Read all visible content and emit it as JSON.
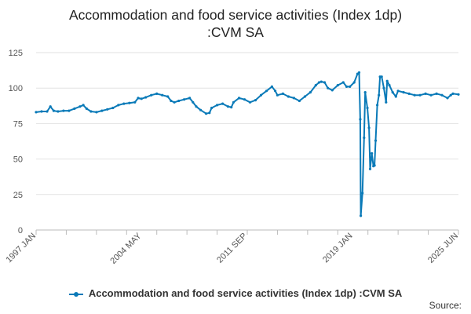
{
  "chart_data": {
    "type": "line",
    "title": "Accommodation and food service activities (Index 1dp) :CVM SA",
    "title_lines": [
      "Accommodation and food service activities (Index 1dp)",
      ":CVM SA"
    ],
    "series": [
      {
        "name": "Accommodation and food service activities (Index 1dp) :CVM SA",
        "color": "#0a7ab8",
        "points": [
          [
            1997.0,
            83
          ],
          [
            1997.5,
            83.5
          ],
          [
            1998.0,
            83.5
          ],
          [
            1998.3,
            87
          ],
          [
            1998.6,
            84
          ],
          [
            1999.0,
            83.5
          ],
          [
            1999.5,
            84
          ],
          [
            2000.0,
            84
          ],
          [
            2000.5,
            85.5
          ],
          [
            2001.0,
            87
          ],
          [
            2001.3,
            88
          ],
          [
            2001.6,
            85.5
          ],
          [
            2002.0,
            83.5
          ],
          [
            2002.5,
            83
          ],
          [
            2003.0,
            84
          ],
          [
            2003.5,
            85
          ],
          [
            2004.0,
            86
          ],
          [
            2004.5,
            88
          ],
          [
            2005.0,
            89
          ],
          [
            2005.5,
            89.5
          ],
          [
            2006.0,
            90
          ],
          [
            2006.3,
            93
          ],
          [
            2006.6,
            92.5
          ],
          [
            2007.0,
            93.5
          ],
          [
            2007.5,
            95
          ],
          [
            2008.0,
            96
          ],
          [
            2008.5,
            95
          ],
          [
            2009.0,
            94
          ],
          [
            2009.3,
            91
          ],
          [
            2009.6,
            90
          ],
          [
            2010.0,
            91
          ],
          [
            2010.5,
            92
          ],
          [
            2011.0,
            93
          ],
          [
            2011.3,
            90
          ],
          [
            2011.6,
            87
          ],
          [
            2012.0,
            84.5
          ],
          [
            2012.5,
            82
          ],
          [
            2012.8,
            82.5
          ],
          [
            2013.0,
            86
          ],
          [
            2013.5,
            88
          ],
          [
            2014.0,
            89
          ],
          [
            2014.5,
            87
          ],
          [
            2014.8,
            86.5
          ],
          [
            2015.0,
            90
          ],
          [
            2015.5,
            93
          ],
          [
            2016.0,
            92
          ],
          [
            2016.5,
            90
          ],
          [
            2017.0,
            91.5
          ],
          [
            2017.5,
            95
          ],
          [
            2018.0,
            98
          ],
          [
            2018.5,
            101
          ],
          [
            2018.8,
            98
          ],
          [
            2019.0,
            95
          ],
          [
            2019.5,
            96
          ],
          [
            2020.0,
            94
          ],
          [
            2020.5,
            93
          ],
          [
            2021.0,
            91
          ],
          [
            2021.5,
            94
          ],
          [
            2022.0,
            97
          ],
          [
            2022.5,
            102
          ],
          [
            2022.8,
            104
          ],
          [
            2023.0,
            104.5
          ],
          [
            2023.3,
            104
          ],
          [
            2023.6,
            100
          ],
          [
            2024.0,
            98.5
          ],
          [
            2024.5,
            102
          ],
          [
            2025.0,
            104
          ],
          [
            2025.3,
            101
          ],
          [
            2025.6,
            101
          ],
          [
            2026.0,
            104
          ],
          [
            2026.3,
            110
          ],
          [
            2026.45,
            111
          ],
          [
            2026.55,
            78
          ],
          [
            2026.6,
            10
          ],
          [
            2026.75,
            26
          ],
          [
            2026.9,
            65
          ],
          [
            2027.0,
            97
          ],
          [
            2027.2,
            86
          ],
          [
            2027.35,
            72
          ],
          [
            2027.45,
            43
          ],
          [
            2027.6,
            54
          ],
          [
            2027.75,
            45
          ],
          [
            2027.85,
            45.5
          ],
          [
            2027.95,
            63
          ],
          [
            2028.1,
            88
          ],
          [
            2028.25,
            95
          ],
          [
            2028.35,
            108
          ],
          [
            2028.5,
            108
          ],
          [
            2028.7,
            100
          ],
          [
            2028.9,
            90
          ],
          [
            2029.0,
            105
          ],
          [
            2029.2,
            102
          ],
          [
            2029.5,
            97
          ],
          [
            2029.8,
            94
          ],
          [
            2030.0,
            98
          ],
          [
            2030.5,
            97
          ],
          [
            2031.0,
            96
          ],
          [
            2031.5,
            95
          ],
          [
            2032.0,
            95
          ],
          [
            2032.5,
            96
          ],
          [
            2033.0,
            95
          ],
          [
            2033.5,
            96
          ],
          [
            2034.0,
            95
          ],
          [
            2034.5,
            93
          ],
          [
            2034.8,
            95
          ],
          [
            2035.0,
            96
          ],
          [
            2035.5,
            95.5
          ]
        ]
      }
    ],
    "x_range": [
      1997.0,
      2035.5
    ],
    "y_range": [
      0,
      125
    ],
    "y_ticks": [
      "0",
      "25",
      "50",
      "75",
      "100",
      "125"
    ],
    "x_tick_labels": [
      {
        "label": "1997 JAN",
        "x": 1997.0
      },
      {
        "label": "2004 MAY",
        "x": 2006.625
      },
      {
        "label": "2011 SEP",
        "x": 2016.25
      },
      {
        "label": "2019 JAN",
        "x": 2025.875
      },
      {
        "label": "2025 JUN",
        "x": 2035.5
      }
    ],
    "x_minor_ticks": [
      1997.0,
      1999.75,
      2002.5,
      2005.25,
      2008.0,
      2010.75,
      2013.5,
      2016.25,
      2019.0,
      2021.75,
      2024.5,
      2027.25,
      2030.0,
      2032.75,
      2035.5
    ],
    "xlabel": "",
    "ylabel": "",
    "grid": true,
    "legend_position": "bottom"
  },
  "legend": {
    "label": "Accommodation and food service activities (Index 1dp) :CVM SA"
  },
  "source": {
    "label": "Source:"
  }
}
